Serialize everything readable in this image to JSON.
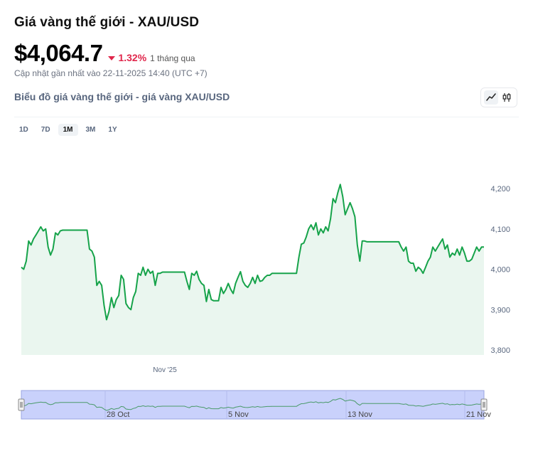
{
  "header": {
    "title": "Giá vàng thế giới - XAU/USD",
    "price": "$4,064.7",
    "change_pct": "1.32%",
    "change_period": "1 tháng qua",
    "updated": "Cập nhật gần nhất vào 22-11-2025 14:40 (UTC +7)",
    "subtitle": "Biểu đồ giá vàng thế giới - giá vàng XAU/USD"
  },
  "icons": {
    "line_view": "line-chart-icon",
    "candle_view": "candlestick-icon",
    "price_down": "triangle-down-icon"
  },
  "colors": {
    "line": "#16a34a",
    "area_fill": "#eaf6ef",
    "down": "#e0264b",
    "navigator_fill": "#c9d1fb"
  },
  "range_buttons": [
    {
      "label": "1D",
      "active": false
    },
    {
      "label": "7D",
      "active": false
    },
    {
      "label": "1M",
      "active": true
    },
    {
      "label": "3M",
      "active": false
    },
    {
      "label": "1Y",
      "active": false
    }
  ],
  "chart_data": {
    "type": "area",
    "x_tick_labels": [
      "Nov '25"
    ],
    "y_ticks": [
      "3,800",
      "3,900",
      "4,000",
      "4,100",
      "4,200"
    ],
    "ylim": [
      3800,
      4225
    ],
    "values": [
      4005,
      4000,
      4020,
      4070,
      4060,
      4075,
      4085,
      4095,
      4105,
      4095,
      4100,
      4055,
      4035,
      4050,
      4090,
      4085,
      4095,
      4097,
      4097,
      4097,
      4097,
      4097,
      4097,
      4097,
      4097,
      4097,
      4097,
      4097,
      4050,
      4045,
      4030,
      3960,
      3970,
      3960,
      3910,
      3875,
      3895,
      3930,
      3905,
      3925,
      3935,
      3985,
      3975,
      3915,
      3905,
      3900,
      3930,
      3945,
      3990,
      3985,
      4005,
      3985,
      4000,
      3990,
      3995,
      3960,
      3990,
      3990,
      3993,
      3993,
      3993,
      3993,
      3993,
      3993,
      3993,
      3993,
      3993,
      3993,
      3970,
      3950,
      3990,
      3985,
      3995,
      3975,
      3965,
      3960,
      3920,
      3950,
      3925,
      3922,
      3922,
      3922,
      3955,
      3940,
      3950,
      3965,
      3950,
      3940,
      3965,
      3980,
      3994,
      3970,
      3960,
      3955,
      3965,
      3980,
      3965,
      3985,
      3970,
      3972,
      3980,
      3985,
      3985,
      3990,
      3990,
      3990,
      3990,
      3990,
      3990,
      3990,
      3990,
      3990,
      3990,
      3990,
      4030,
      4062,
      4065,
      4080,
      4100,
      4110,
      4098,
      4115,
      4085,
      4100,
      4090,
      4105,
      4095,
      4125,
      4175,
      4165,
      4190,
      4210,
      4180,
      4135,
      4150,
      4165,
      4150,
      4130,
      4060,
      4020,
      4070,
      4070,
      4068,
      4068,
      4068,
      4068,
      4068,
      4068,
      4068,
      4068,
      4068,
      4068,
      4068,
      4068,
      4068,
      4068,
      4055,
      4045,
      4055,
      4020,
      4015,
      4015,
      3995,
      4005,
      4000,
      3990,
      4005,
      4020,
      4030,
      4055,
      4045,
      4055,
      4065,
      4075,
      4050,
      4060,
      4030,
      4040,
      4035,
      4050,
      4035,
      4055,
      4040,
      4020,
      4020,
      4025,
      4040,
      4055,
      4045,
      4055,
      4055
    ],
    "navigator_labels": [
      "28 Oct",
      "5 Nov",
      "13 Nov",
      "21 Nov"
    ]
  }
}
